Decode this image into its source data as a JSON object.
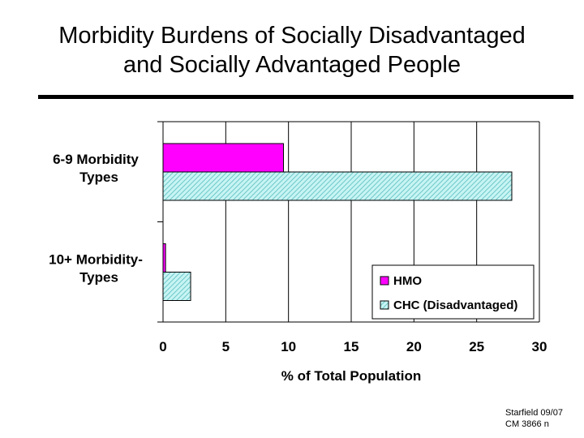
{
  "slide": {
    "title_line1": "Morbidity Burdens of Socially Disadvantaged",
    "title_line2": "and Socially Advantaged People",
    "footer_line1": "Starfield 09/07",
    "footer_line2": "CM 3866 n"
  },
  "chart_data": {
    "type": "bar",
    "orientation": "horizontal",
    "title": "",
    "categories": [
      {
        "line1": "6-9 Morbidity",
        "line2": "Types"
      },
      {
        "line1": "10+ Morbidity-",
        "line2": "Types"
      }
    ],
    "series": [
      {
        "name": "HMO",
        "values": [
          9.6,
          0.2
        ],
        "color": "#ff00ff",
        "pattern": "solid"
      },
      {
        "name": "CHC (Disadvantaged)",
        "values": [
          27.8,
          2.2
        ],
        "color": "#bff0f0",
        "pattern": "hatched"
      }
    ],
    "xlabel": "% of Total Population",
    "ylabel": "",
    "xlim": [
      0,
      30
    ],
    "xticks": [
      "0",
      "5",
      "10",
      "15",
      "20",
      "25",
      "30"
    ],
    "grid": true,
    "legend_position": "bottom-right"
  }
}
